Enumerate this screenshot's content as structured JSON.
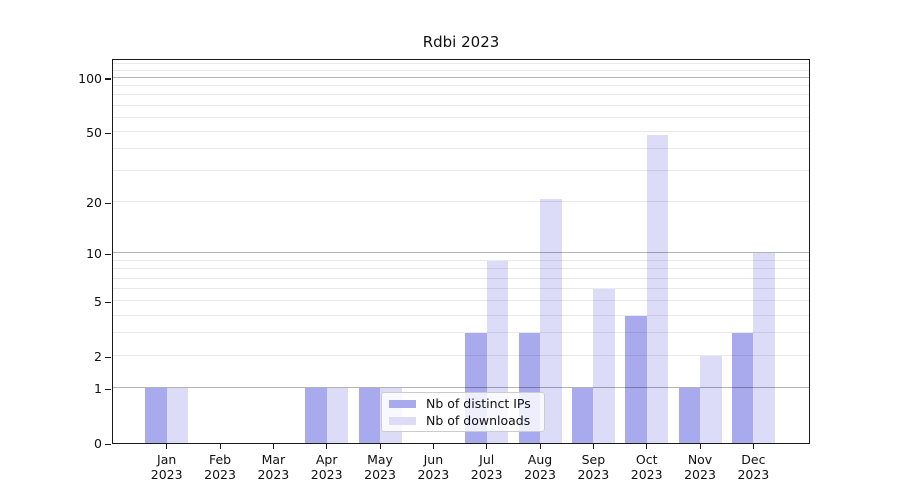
{
  "chart_data": {
    "type": "bar",
    "title": "Rdbi 2023",
    "months": [
      "Jan",
      "Feb",
      "Mar",
      "Apr",
      "May",
      "Jun",
      "Jul",
      "Aug",
      "Sep",
      "Oct",
      "Nov",
      "Dec"
    ],
    "year": "2023",
    "categories": [
      "Jan 2023",
      "Feb 2023",
      "Mar 2023",
      "Apr 2023",
      "May 2023",
      "Jun 2023",
      "Jul 2023",
      "Aug 2023",
      "Sep 2023",
      "Oct 2023",
      "Nov 2023",
      "Dec 2023"
    ],
    "series": [
      {
        "name": "Nb of distinct IPs",
        "color": "#a9a9ee",
        "values": [
          1,
          0,
          0,
          1,
          1,
          0,
          3,
          3,
          1,
          4,
          1,
          3
        ]
      },
      {
        "name": "Nb of downloads",
        "color": "#dcdcf8",
        "values": [
          1,
          0,
          0,
          1,
          1,
          0,
          9,
          21,
          6,
          48,
          2,
          10
        ]
      }
    ],
    "yscale": "log1p",
    "ylim": [
      0,
      129
    ],
    "ytick_labels": [
      0,
      1,
      2,
      5,
      10,
      20,
      50,
      100
    ],
    "grid_major": [
      1,
      10,
      100
    ],
    "grid_minor": [
      2,
      3,
      4,
      5,
      6,
      7,
      8,
      9,
      20,
      30,
      40,
      50,
      60,
      70,
      80,
      90,
      110,
      120
    ],
    "grid": true,
    "xlabel": "",
    "ylabel": "",
    "legend_position": "inside bottom-center"
  },
  "colors": {
    "background": "#ffffff",
    "axis": "#1a1a1a",
    "grid_major": "#b4b4b4",
    "grid_minor": "#e9e9e9",
    "text": "#111111",
    "legend_border": "#cccccc",
    "bar_distinct_ips": "#a9a9ee",
    "bar_downloads": "#dcdcf8"
  }
}
